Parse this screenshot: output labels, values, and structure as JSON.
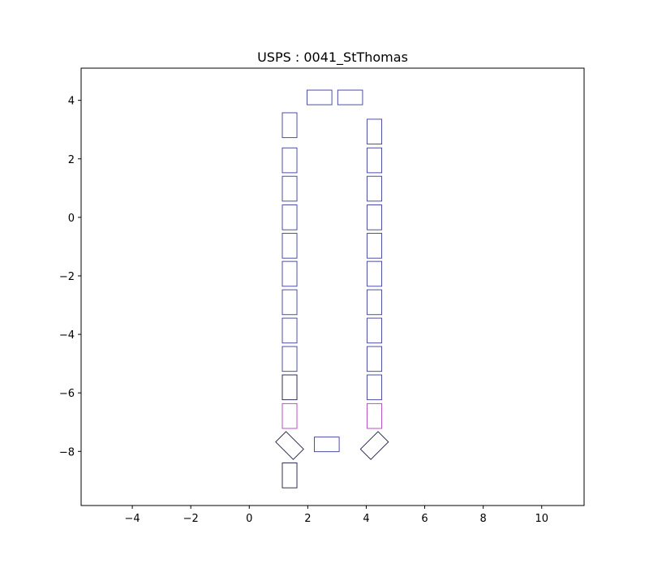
{
  "chart_data": {
    "type": "scatter",
    "title": "USPS : 0041_StThomas",
    "xlabel": "",
    "ylabel": "",
    "xlim": [
      -5.75,
      11.45
    ],
    "ylim": [
      -9.85,
      5.1
    ],
    "x_ticks": [
      -4,
      -2,
      0,
      2,
      4,
      6,
      8,
      10
    ],
    "y_ticks": [
      4,
      2,
      0,
      -2,
      -4,
      -6,
      -8
    ],
    "x_tick_labels": [
      "−4",
      "−2",
      "0",
      "2",
      "4",
      "6",
      "8",
      "10"
    ],
    "y_tick_labels": [
      "4",
      "2",
      "0",
      "−2",
      "−4",
      "−6",
      "−8"
    ],
    "grid": false,
    "colors": {
      "blue": "#3b3b9c",
      "dark": "#1a1a40",
      "magenta": "#b040c0"
    },
    "rects": [
      {
        "cx": 2.4,
        "cy": 4.1,
        "w": 0.85,
        "h": 0.5,
        "angle": 0,
        "color": "blue"
      },
      {
        "cx": 3.45,
        "cy": 4.1,
        "w": 0.85,
        "h": 0.5,
        "angle": 0,
        "color": "blue"
      },
      {
        "cx": 1.38,
        "cy": 3.15,
        "w": 0.5,
        "h": 0.85,
        "angle": 0,
        "color": "blue"
      },
      {
        "cx": 1.38,
        "cy": 1.95,
        "w": 0.5,
        "h": 0.85,
        "angle": 0,
        "color": "blue"
      },
      {
        "cx": 1.38,
        "cy": 0.98,
        "w": 0.5,
        "h": 0.85,
        "angle": 0,
        "color": "blue"
      },
      {
        "cx": 1.38,
        "cy": 0.0,
        "w": 0.5,
        "h": 0.85,
        "angle": 0,
        "color": "blue"
      },
      {
        "cx": 1.38,
        "cy": -0.97,
        "w": 0.5,
        "h": 0.85,
        "angle": 0,
        "color": "blue"
      },
      {
        "cx": 1.38,
        "cy": -1.93,
        "w": 0.5,
        "h": 0.85,
        "angle": 0,
        "color": "blue"
      },
      {
        "cx": 1.38,
        "cy": -2.9,
        "w": 0.5,
        "h": 0.85,
        "angle": 0,
        "color": "blue"
      },
      {
        "cx": 1.38,
        "cy": -3.87,
        "w": 0.5,
        "h": 0.85,
        "angle": 0,
        "color": "blue"
      },
      {
        "cx": 1.38,
        "cy": -4.84,
        "w": 0.5,
        "h": 0.85,
        "angle": 0,
        "color": "blue"
      },
      {
        "cx": 1.38,
        "cy": -5.81,
        "w": 0.5,
        "h": 0.85,
        "angle": 0,
        "color": "dark"
      },
      {
        "cx": 1.38,
        "cy": -6.79,
        "w": 0.5,
        "h": 0.85,
        "angle": 0,
        "color": "magenta"
      },
      {
        "cx": 1.38,
        "cy": -7.8,
        "w": 0.5,
        "h": 0.85,
        "angle": 45,
        "color": "dark"
      },
      {
        "cx": 1.38,
        "cy": -8.82,
        "w": 0.5,
        "h": 0.85,
        "angle": 0,
        "color": "dark"
      },
      {
        "cx": 4.28,
        "cy": 2.93,
        "w": 0.5,
        "h": 0.85,
        "angle": 0,
        "color": "blue"
      },
      {
        "cx": 4.28,
        "cy": 1.95,
        "w": 0.5,
        "h": 0.85,
        "angle": 0,
        "color": "blue"
      },
      {
        "cx": 4.28,
        "cy": 0.98,
        "w": 0.5,
        "h": 0.85,
        "angle": 0,
        "color": "blue"
      },
      {
        "cx": 4.28,
        "cy": 0.0,
        "w": 0.5,
        "h": 0.85,
        "angle": 0,
        "color": "blue"
      },
      {
        "cx": 4.28,
        "cy": -0.97,
        "w": 0.5,
        "h": 0.85,
        "angle": 0,
        "color": "blue"
      },
      {
        "cx": 4.28,
        "cy": -1.93,
        "w": 0.5,
        "h": 0.85,
        "angle": 0,
        "color": "blue"
      },
      {
        "cx": 4.28,
        "cy": -2.9,
        "w": 0.5,
        "h": 0.85,
        "angle": 0,
        "color": "blue"
      },
      {
        "cx": 4.28,
        "cy": -3.87,
        "w": 0.5,
        "h": 0.85,
        "angle": 0,
        "color": "blue"
      },
      {
        "cx": 4.28,
        "cy": -4.84,
        "w": 0.5,
        "h": 0.85,
        "angle": 0,
        "color": "blue"
      },
      {
        "cx": 4.28,
        "cy": -5.81,
        "w": 0.5,
        "h": 0.85,
        "angle": 0,
        "color": "blue"
      },
      {
        "cx": 4.28,
        "cy": -6.79,
        "w": 0.5,
        "h": 0.85,
        "angle": 0,
        "color": "magenta"
      },
      {
        "cx": 4.28,
        "cy": -7.8,
        "w": 0.5,
        "h": 0.85,
        "angle": -45,
        "color": "dark"
      },
      {
        "cx": 2.65,
        "cy": -7.76,
        "w": 0.85,
        "h": 0.5,
        "angle": 0,
        "color": "blue"
      }
    ]
  }
}
